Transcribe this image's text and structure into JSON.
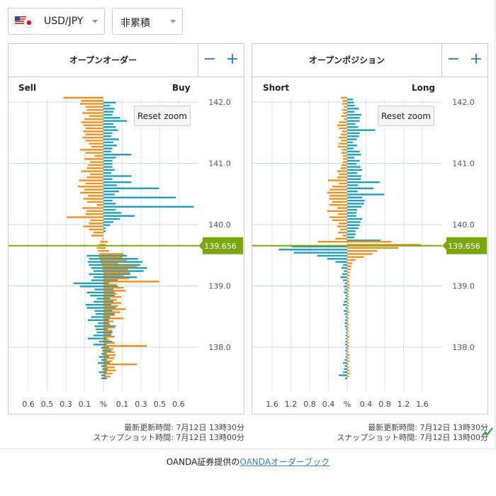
{
  "controls": {
    "pair": "USD/JPY",
    "mode": "非累積"
  },
  "zoom": {
    "minus": "−",
    "plus": "+"
  },
  "reset_zoom_label": "Reset zoom",
  "footer": {
    "updated": "最新更新時間: 7月12日 13時30分",
    "snapshot": "スナップショット時間: 7月12日 13時00分"
  },
  "credit": {
    "prefix": "OANDA証券提供の",
    "link": "OANDAオーダーブック"
  },
  "colors": {
    "sell": "#f0901e",
    "buy": "#1f9fb8",
    "price": "#7aa70e"
  },
  "current_price": "139.656",
  "chart_data": [
    {
      "type": "bar",
      "title": "オープンオーダー",
      "left_label": "Sell",
      "right_label": "Buy",
      "unit": "%",
      "y_ticks": [
        "142.0",
        "141.0",
        "140.0",
        "139.0",
        "138.0"
      ],
      "y_range": [
        137.5,
        142.05
      ],
      "x_ticks": [
        "0.6",
        "0.5",
        "0.3",
        "0.1",
        "%",
        "0.1",
        "0.3",
        "0.5",
        "0.6"
      ],
      "x_max": 0.75,
      "current_price": 139.656,
      "price_levels": [
        142.05,
        142.0,
        141.95,
        141.9,
        141.85,
        141.8,
        141.75,
        141.7,
        141.65,
        141.6,
        141.55,
        141.5,
        141.45,
        141.4,
        141.35,
        141.3,
        141.25,
        141.2,
        141.15,
        141.1,
        141.05,
        141.0,
        140.95,
        140.9,
        140.85,
        140.8,
        140.75,
        140.7,
        140.65,
        140.6,
        140.55,
        140.5,
        140.45,
        140.4,
        140.35,
        140.3,
        140.25,
        140.2,
        140.15,
        140.1,
        140.05,
        140.0,
        139.95,
        139.9,
        139.85,
        139.8,
        139.75,
        139.7,
        139.65,
        139.6,
        139.55,
        139.5,
        139.45,
        139.4,
        139.35,
        139.3,
        139.25,
        139.2,
        139.15,
        139.1,
        139.05,
        139.0,
        138.95,
        138.9,
        138.85,
        138.8,
        138.75,
        138.7,
        138.65,
        138.6,
        138.55,
        138.5,
        138.45,
        138.4,
        138.35,
        138.3,
        138.25,
        138.2,
        138.15,
        138.1,
        138.05,
        138.0,
        137.95,
        137.9,
        137.85,
        137.8,
        137.75,
        137.7,
        137.65,
        137.6,
        137.55,
        137.5
      ],
      "sell": [
        0.36,
        0.2,
        0.21,
        0.16,
        0.15,
        0.19,
        0.13,
        0.17,
        0.2,
        0.18,
        0.16,
        0.18,
        0.16,
        0.19,
        0.16,
        0.13,
        0.11,
        0.21,
        0.16,
        0.08,
        0.17,
        0.12,
        0.14,
        0.15,
        0.2,
        0.12,
        0.15,
        0.22,
        0.16,
        0.23,
        0.17,
        0.21,
        0.14,
        0.18,
        0.15,
        0.06,
        0.19,
        0.15,
        0.16,
        0.33,
        0.12,
        0.13,
        0.18,
        0.13,
        0.09,
        0.11,
        0.01,
        0.03,
        0.04,
        0.06,
        0.05,
        0.04,
        0.04,
        0.03,
        0.02,
        0.01,
        0.01,
        0.0,
        0.0,
        0.0,
        0.0,
        0.0,
        0.0,
        0.0,
        0.0,
        0.0,
        0.0,
        0.0,
        0.0,
        0.0,
        0.0,
        0.0,
        0.0,
        0.0,
        0.0,
        0.0,
        0.0,
        0.0,
        0.0,
        0.0,
        0.0,
        0.0,
        0.0,
        0.0,
        0.0,
        0.0,
        0.0,
        0.0,
        0.0,
        0.0,
        0.0,
        0.0
      ],
      "buy": [
        0.0,
        0.11,
        0.06,
        0.1,
        0.09,
        0.08,
        0.15,
        0.21,
        0.09,
        0.11,
        0.13,
        0.08,
        0.07,
        0.14,
        0.09,
        0.12,
        0.08,
        0.07,
        0.25,
        0.11,
        0.08,
        0.08,
        0.08,
        0.1,
        0.07,
        0.25,
        0.08,
        0.25,
        0.12,
        0.5,
        0.14,
        0.1,
        0.65,
        0.08,
        0.11,
        0.81,
        0.11,
        0.16,
        0.28,
        0.15,
        0.09,
        0.06,
        0.02,
        0.02,
        0.0,
        0.0,
        0.0,
        0.0,
        0.0,
        0.0,
        0.0,
        0.21,
        0.31,
        0.35,
        0.33,
        0.39,
        0.36,
        0.24,
        0.3,
        0.13,
        0.05,
        0.13,
        0.09,
        0.1,
        0.1,
        0.06,
        0.09,
        0.07,
        0.11,
        0.08,
        0.1,
        0.06,
        0.05,
        0.05,
        0.11,
        0.04,
        0.08,
        0.07,
        0.03,
        0.08,
        0.03,
        0.05,
        0.07,
        0.03,
        0.05,
        0.03,
        0.06,
        0.03,
        0.04,
        0.03,
        0.02,
        0.03
      ],
      "sell_below": [
        0.0,
        0.0,
        0.0,
        0.0,
        0.0,
        0.0,
        0.0,
        0.0,
        0.0,
        0.0,
        0.0,
        0.0,
        0.0,
        0.0,
        0.0,
        0.0,
        0.0,
        0.0,
        0.0,
        0.0,
        0.0,
        0.0,
        0.0,
        0.0,
        0.0,
        0.0,
        0.0,
        0.0,
        0.0,
        0.0,
        0.0,
        0.0,
        0.0,
        0.0,
        0.0,
        0.0,
        0.0,
        0.0,
        0.0,
        0.0,
        0.0,
        0.0,
        0.0,
        0.0,
        0.0,
        0.0,
        0.0,
        0.0,
        0.0,
        0.0,
        0.0,
        0.15,
        0.13,
        0.14,
        0.13,
        0.11,
        0.09,
        0.13,
        0.09,
        0.11,
        0.27,
        0.21,
        0.08,
        0.15,
        0.12,
        0.06,
        0.09,
        0.16,
        0.15,
        0.08,
        0.07,
        0.11,
        0.14,
        0.05,
        0.08,
        0.07,
        0.06,
        0.09,
        0.14,
        0.04,
        0.09,
        0.02,
        0.01,
        0.02,
        0.04,
        0.02,
        0.05,
        0.02,
        0.01,
        0.04,
        0.02,
        0.02
      ],
      "buy_below": [
        0.0,
        0.0,
        0.0,
        0.0,
        0.0,
        0.0,
        0.0,
        0.0,
        0.0,
        0.0,
        0.0,
        0.0,
        0.0,
        0.0,
        0.0,
        0.0,
        0.0,
        0.0,
        0.0,
        0.0,
        0.0,
        0.0,
        0.0,
        0.0,
        0.0,
        0.0,
        0.0,
        0.0,
        0.0,
        0.0,
        0.0,
        0.0,
        0.0,
        0.0,
        0.0,
        0.0,
        0.0,
        0.0,
        0.0,
        0.0,
        0.0,
        0.0,
        0.0,
        0.0,
        0.0,
        0.0,
        0.0,
        0.04,
        0.02,
        0.02,
        0.05,
        0.18,
        0.17,
        0.21,
        0.13,
        0.3,
        0.22,
        0.24,
        0.18,
        0.23,
        0.5,
        0.12,
        0.18,
        0.2,
        0.12,
        0.16,
        0.12,
        0.16,
        0.13,
        0.2,
        0.15,
        0.1,
        0.18,
        0.09,
        0.06,
        0.1,
        0.08,
        0.07,
        0.1,
        0.05,
        0.1,
        0.39,
        0.09,
        0.1,
        0.11,
        0.1,
        0.08,
        0.3,
        0.1,
        0.11,
        0.08,
        0.06
      ]
    },
    {
      "type": "bar",
      "title": "オープンポジション",
      "left_label": "Short",
      "right_label": "Long",
      "unit": "%",
      "y_ticks": [
        "142.0",
        "141.0",
        "140.0",
        "139.0",
        "138.0"
      ],
      "y_range": [
        137.5,
        142.05
      ],
      "x_ticks": [
        "1.6",
        "1.2",
        "0.8",
        "0.4",
        "%",
        "0.4",
        "0.8",
        "1.2",
        "1.6"
      ],
      "x_max": 2.0,
      "current_price": 139.656,
      "price_levels": [
        142.05,
        142.0,
        141.95,
        141.9,
        141.85,
        141.8,
        141.75,
        141.7,
        141.65,
        141.6,
        141.55,
        141.5,
        141.45,
        141.4,
        141.35,
        141.3,
        141.25,
        141.2,
        141.15,
        141.1,
        141.05,
        141.0,
        140.95,
        140.9,
        140.85,
        140.8,
        140.75,
        140.7,
        140.65,
        140.6,
        140.55,
        140.5,
        140.45,
        140.4,
        140.35,
        140.3,
        140.25,
        140.2,
        140.15,
        140.1,
        140.05,
        140.0,
        139.95,
        139.9,
        139.85,
        139.8,
        139.75,
        139.7,
        139.65,
        139.6,
        139.55,
        139.5,
        139.45,
        139.4,
        139.35,
        139.3,
        139.25,
        139.2,
        139.15,
        139.1,
        139.05,
        139.0,
        138.95,
        138.9,
        138.85,
        138.8,
        138.75,
        138.7,
        138.65,
        138.6,
        138.55,
        138.5,
        138.45,
        138.4,
        138.35,
        138.3,
        138.25,
        138.2,
        138.15,
        138.1,
        138.05,
        138.0,
        137.95,
        137.9,
        137.85,
        137.8,
        137.75,
        137.7,
        137.65,
        137.6,
        137.55,
        137.5
      ],
      "short": [
        0.15,
        0.11,
        0.12,
        0.08,
        0.12,
        0.1,
        0.14,
        0.08,
        0.2,
        0.24,
        0.2,
        0.12,
        0.15,
        0.2,
        0.15,
        0.2,
        0.22,
        0.13,
        0.14,
        0.1,
        0.1,
        0.11,
        0.14,
        0.16,
        0.24,
        0.2,
        0.24,
        0.46,
        0.2,
        0.36,
        0.42,
        0.48,
        0.42,
        0.43,
        0.36,
        0.43,
        0.24,
        0.48,
        0.22,
        0.42,
        0.36,
        0.2,
        0.24,
        0.17,
        0.22,
        0.11,
        0.28,
        0.7,
        0.0,
        0.0,
        0.0,
        0.0,
        0.0,
        0.0,
        0.0,
        0.0,
        0.0,
        0.0,
        0.0,
        0.0,
        0.0,
        0.0,
        0.0,
        0.0,
        0.0,
        0.0,
        0.0,
        0.0,
        0.0,
        0.0,
        0.0,
        0.0,
        0.0,
        0.0,
        0.0,
        0.0,
        0.0,
        0.0,
        0.0,
        0.0,
        0.0,
        0.0,
        0.0,
        0.0,
        0.0,
        0.0,
        0.0,
        0.0,
        0.0,
        0.0,
        0.0,
        0.0
      ],
      "long": [
        0.14,
        0.16,
        0.18,
        0.28,
        0.17,
        0.34,
        0.3,
        0.3,
        0.2,
        0.26,
        0.67,
        0.3,
        0.28,
        0.23,
        0.14,
        0.24,
        0.15,
        0.3,
        0.33,
        0.17,
        0.3,
        0.22,
        0.32,
        0.36,
        0.24,
        0.34,
        0.33,
        0.78,
        0.26,
        0.63,
        0.25,
        0.88,
        0.36,
        0.42,
        0.4,
        0.34,
        0.24,
        0.22,
        0.22,
        0.36,
        0.32,
        0.3,
        0.27,
        0.2,
        0.2,
        0.17,
        0.8,
        0.0,
        0.0,
        0.0,
        0.0,
        0.0,
        0.0,
        0.0,
        0.0,
        0.0,
        0.0,
        0.0,
        0.0,
        0.0,
        0.0,
        0.0,
        0.0,
        0.0,
        0.0,
        0.0,
        0.0,
        0.0,
        0.0,
        0.0,
        0.0,
        0.0,
        0.0,
        0.0,
        0.0,
        0.0,
        0.0,
        0.0,
        0.0,
        0.0,
        0.0,
        0.0,
        0.0,
        0.0,
        0.0,
        0.0,
        0.0,
        0.0,
        0.0,
        0.0,
        0.0,
        0.0
      ],
      "short_below": [
        0.0,
        0.0,
        0.0,
        0.0,
        0.0,
        0.0,
        0.0,
        0.0,
        0.0,
        0.0,
        0.0,
        0.0,
        0.0,
        0.0,
        0.0,
        0.0,
        0.0,
        0.0,
        0.0,
        0.0,
        0.0,
        0.0,
        0.0,
        0.0,
        0.0,
        0.0,
        0.0,
        0.0,
        0.0,
        0.0,
        0.0,
        0.0,
        0.0,
        0.0,
        0.0,
        0.0,
        0.0,
        0.0,
        0.0,
        0.0,
        0.0,
        0.0,
        0.0,
        0.0,
        0.0,
        0.0,
        0.0,
        0.0,
        1.32,
        1.64,
        1.28,
        0.72,
        0.48,
        0.28,
        0.1,
        0.14,
        0.08,
        0.12,
        0.16,
        0.1,
        0.06,
        0.08,
        0.06,
        0.08,
        0.04,
        0.05,
        0.08,
        0.1,
        0.04,
        0.08,
        0.06,
        0.04,
        0.05,
        0.06,
        0.05,
        0.04,
        0.03,
        0.04,
        0.03,
        0.04,
        0.05,
        0.03,
        0.04,
        0.03,
        0.04,
        0.06,
        0.1,
        0.06,
        0.08,
        0.1,
        0.2,
        0.05
      ],
      "long_below": [
        0.0,
        0.0,
        0.0,
        0.0,
        0.0,
        0.0,
        0.0,
        0.0,
        0.0,
        0.0,
        0.0,
        0.0,
        0.0,
        0.0,
        0.0,
        0.0,
        0.0,
        0.0,
        0.0,
        0.0,
        0.0,
        0.0,
        0.0,
        0.0,
        0.0,
        0.0,
        0.0,
        0.0,
        0.0,
        0.0,
        0.0,
        0.0,
        0.0,
        0.0,
        0.0,
        0.0,
        0.0,
        0.0,
        0.0,
        0.0,
        0.0,
        0.0,
        0.0,
        0.0,
        0.0,
        0.0,
        0.0,
        1.06,
        1.76,
        1.22,
        0.72,
        0.6,
        0.4,
        0.2,
        0.12,
        0.1,
        0.08,
        0.06,
        0.06,
        0.04,
        0.05,
        0.06,
        0.05,
        0.04,
        0.03,
        0.04,
        0.04,
        0.04,
        0.03,
        0.03,
        0.05,
        0.03,
        0.04,
        0.03,
        0.04,
        0.03,
        0.04,
        0.03,
        0.05,
        0.03,
        0.04,
        0.04,
        0.03,
        0.03,
        0.06,
        0.04,
        0.05,
        0.03,
        0.04,
        0.05,
        0.06,
        0.04
      ]
    }
  ]
}
